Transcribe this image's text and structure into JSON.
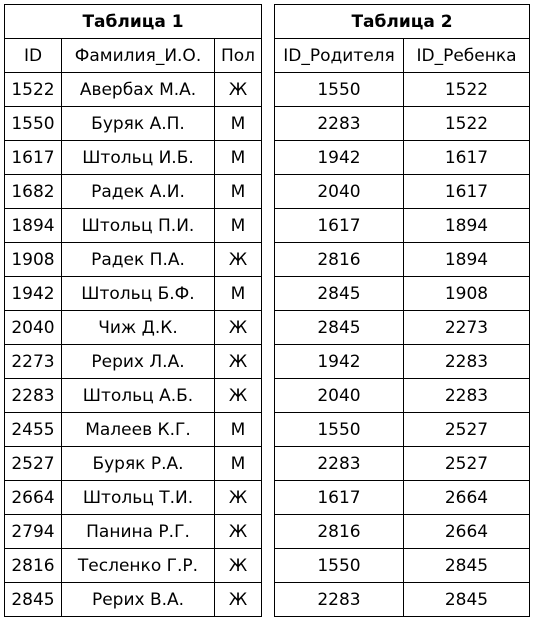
{
  "table1": {
    "title": "Таблица 1",
    "headers": [
      "ID",
      "Фамилия_И.О.",
      "Пол"
    ],
    "rows": [
      [
        "1522",
        "Авербах М.А.",
        "Ж"
      ],
      [
        "1550",
        "Буряк А.П.",
        "М"
      ],
      [
        "1617",
        "Штольц И.Б.",
        "М"
      ],
      [
        "1682",
        "Радек А.И.",
        "М"
      ],
      [
        "1894",
        "Штольц П.И.",
        "М"
      ],
      [
        "1908",
        "Радек П.А.",
        "Ж"
      ],
      [
        "1942",
        "Штольц Б.Ф.",
        "М"
      ],
      [
        "2040",
        "Чиж Д.К.",
        "Ж"
      ],
      [
        "2273",
        "Рерих Л.А.",
        "Ж"
      ],
      [
        "2283",
        "Штольц А.Б.",
        "Ж"
      ],
      [
        "2455",
        "Малеев К.Г.",
        "М"
      ],
      [
        "2527",
        "Буряк Р.А.",
        "М"
      ],
      [
        "2664",
        "Штольц Т.И.",
        "Ж"
      ],
      [
        "2794",
        "Панина Р.Г.",
        "Ж"
      ],
      [
        "2816",
        "Тесленко Г.Р.",
        "Ж"
      ],
      [
        "2845",
        "Рерих В.А.",
        "Ж"
      ]
    ]
  },
  "table2": {
    "title": "Таблица 2",
    "headers": [
      "ID_Родителя",
      "ID_Ребенка"
    ],
    "rows": [
      [
        "1550",
        "1522"
      ],
      [
        "2283",
        "1522"
      ],
      [
        "1942",
        "1617"
      ],
      [
        "2040",
        "1617"
      ],
      [
        "1617",
        "1894"
      ],
      [
        "2816",
        "1894"
      ],
      [
        "2845",
        "1908"
      ],
      [
        "2845",
        "2273"
      ],
      [
        "1942",
        "2283"
      ],
      [
        "2040",
        "2283"
      ],
      [
        "1550",
        "2527"
      ],
      [
        "2283",
        "2527"
      ],
      [
        "1617",
        "2664"
      ],
      [
        "2816",
        "2664"
      ],
      [
        "1550",
        "2845"
      ],
      [
        "2283",
        "2845"
      ]
    ]
  }
}
